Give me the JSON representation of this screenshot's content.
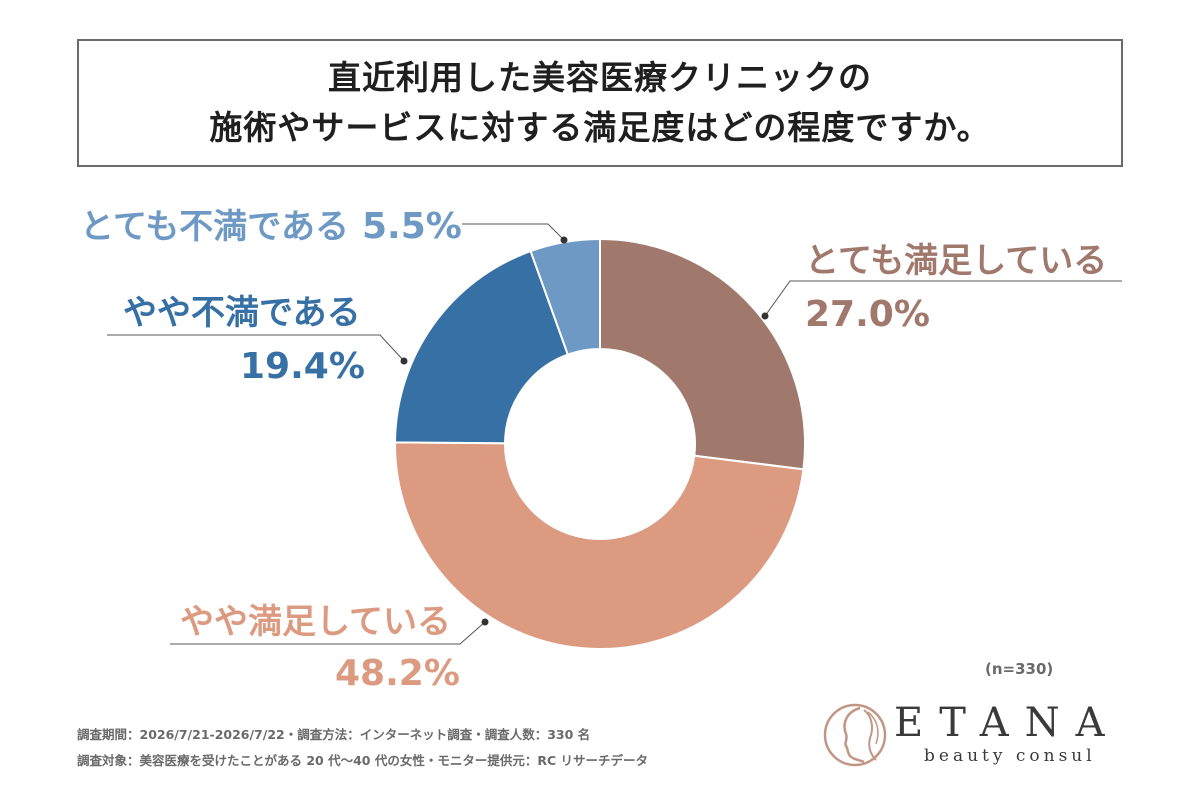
{
  "title": {
    "line1": "直近利用した美容医療クリニックの",
    "line2": "施術やサービスに対する満足度はどの程度ですか。"
  },
  "chart_data": {
    "type": "pie",
    "donut": true,
    "slices": [
      {
        "label": "とても満足している",
        "value": 27.0,
        "value_label": "27.0%",
        "color": "#a0786c"
      },
      {
        "label": "やや満足している",
        "value": 48.2,
        "value_label": "48.2%",
        "color": "#dc9a80"
      },
      {
        "label": "やや不満である",
        "value": 19.4,
        "value_label": "19.4%",
        "color": "#3770a5"
      },
      {
        "label": "とても不満である",
        "value": 5.5,
        "value_label": "5.5%",
        "color": "#6d99c4"
      }
    ]
  },
  "sample_size": "(n=330)",
  "footer": {
    "line1": "調査期間：2026/7/21-2026/7/22・調査方法：インターネット調査・調査人数：330 名",
    "line2": "調査対象：美容医療を受けたことがある 20 代〜40 代の女性・モニター提供元：RC リサーチデータ"
  },
  "logo": {
    "name": "ETANA",
    "tagline": "beauty consul",
    "color": "#c29684"
  }
}
